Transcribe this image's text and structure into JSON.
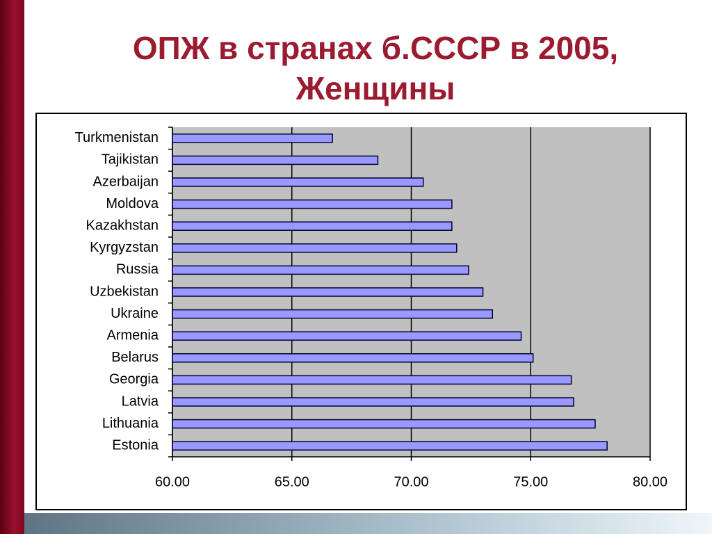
{
  "chart_data": {
    "type": "bar",
    "orientation": "horizontal",
    "title": "ОПЖ в странах б.СССР в 2005, Женщины",
    "categories": [
      "Turkmenistan",
      "Tajikistan",
      "Azerbaijan",
      "Moldova",
      "Kazakhstan",
      "Kyrgyzstan",
      "Russia",
      "Uzbekistan",
      "Ukraine",
      "Armenia",
      "Belarus",
      "Georgia",
      "Latvia",
      "Lithuania",
      "Estonia"
    ],
    "values": [
      66.7,
      68.6,
      70.5,
      71.7,
      71.7,
      71.9,
      72.4,
      73.0,
      73.4,
      74.6,
      75.1,
      76.7,
      76.8,
      77.7,
      78.2
    ],
    "color": "#9999ff",
    "xlim": [
      60,
      80
    ],
    "xticks": [
      {
        "value": 60,
        "label": "60.00"
      },
      {
        "value": 65,
        "label": "65.00"
      },
      {
        "value": 70,
        "label": "70.00"
      },
      {
        "value": 75,
        "label": "75.00"
      },
      {
        "value": 80,
        "label": "80.00"
      }
    ],
    "grid": true
  }
}
